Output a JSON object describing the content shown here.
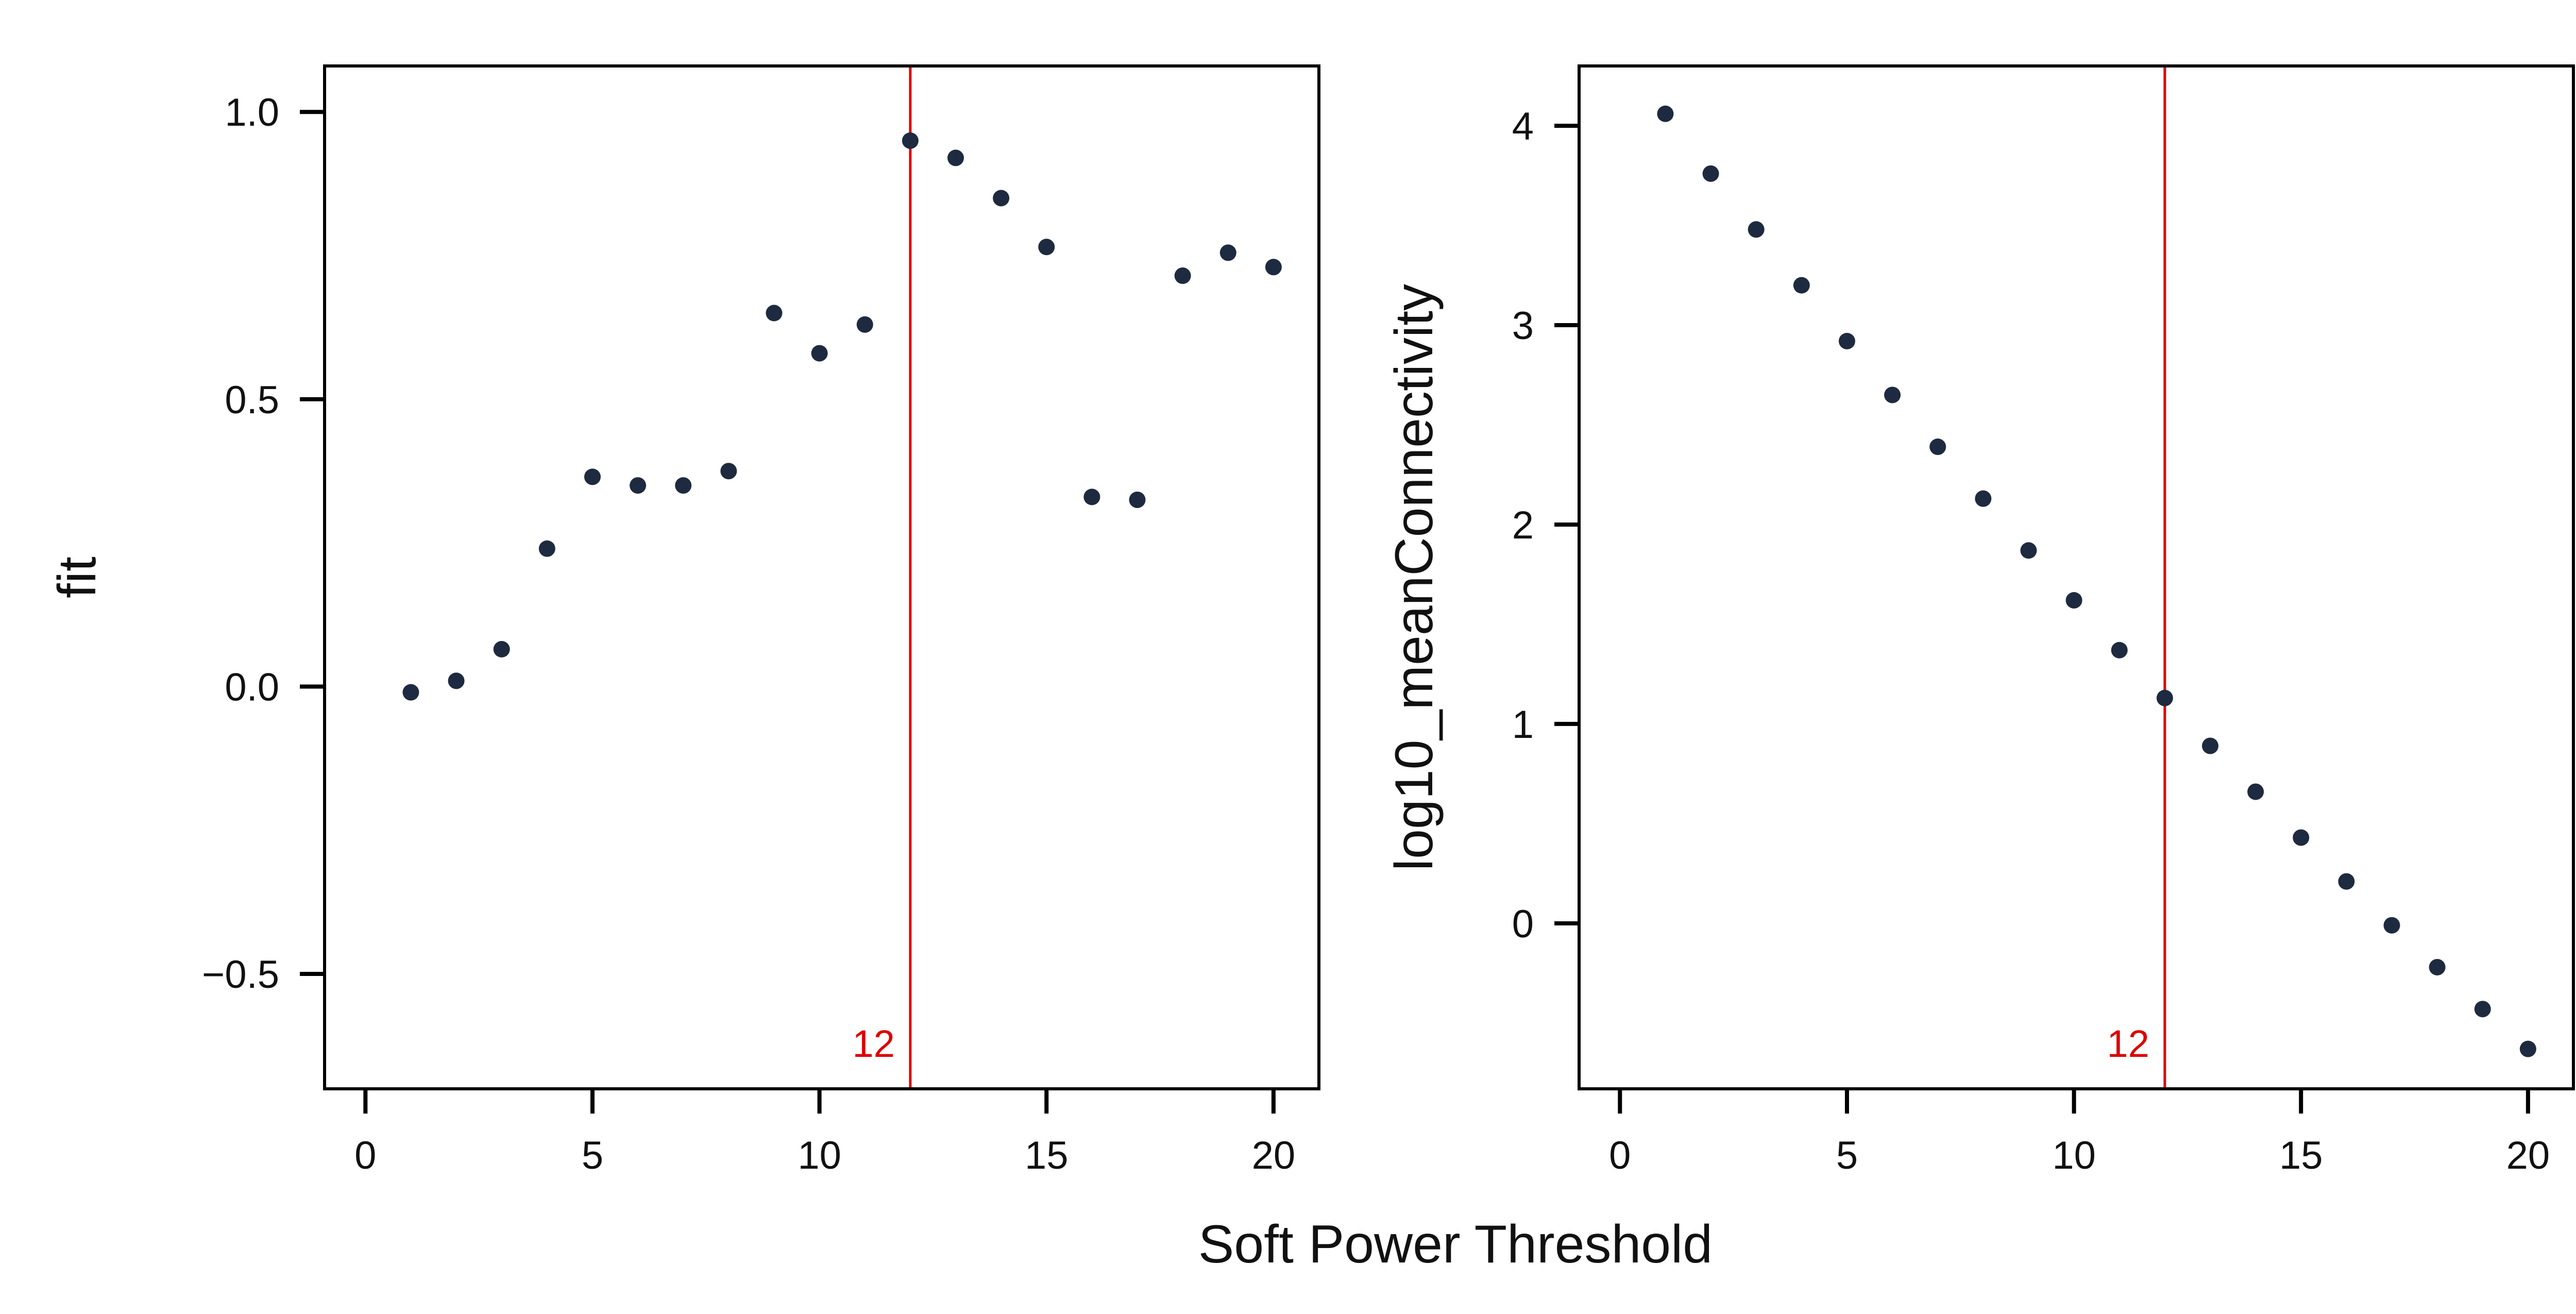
{
  "figure": {
    "xlabel": "Soft Power Threshold"
  },
  "chart_data": [
    {
      "type": "scatter",
      "title": "",
      "ylabel": "fit",
      "xlim": [
        -0.9,
        21.0
      ],
      "ylim": [
        -0.7,
        1.08
      ],
      "xticks": [
        0,
        5,
        10,
        15,
        20
      ],
      "xtick_labels": [
        "0",
        "5",
        "10",
        "15",
        "20"
      ],
      "yticks": [
        -0.5,
        0.0,
        0.5,
        1.0
      ],
      "ytick_labels": [
        "−0.5",
        "0.0",
        "0.5",
        "1.0"
      ],
      "vline": {
        "x": 12,
        "label": "12",
        "color": "#dd0000"
      },
      "point_color": "#1e2a3f",
      "grid": false,
      "legend": "none",
      "x": [
        1,
        2,
        3,
        4,
        5,
        6,
        7,
        8,
        9,
        10,
        11,
        12,
        13,
        14,
        15,
        16,
        17,
        18,
        19,
        20
      ],
      "y": [
        -0.01,
        0.01,
        0.065,
        0.24,
        0.365,
        0.35,
        0.35,
        0.375,
        0.65,
        0.58,
        0.63,
        0.95,
        0.92,
        0.85,
        0.765,
        0.33,
        0.325,
        0.715,
        0.755,
        0.73
      ]
    },
    {
      "type": "scatter",
      "title": "",
      "ylabel": "log10_meanConnectivity",
      "xlim": [
        -0.9,
        21.0
      ],
      "ylim": [
        -0.83,
        4.3
      ],
      "xticks": [
        0,
        5,
        10,
        15,
        20
      ],
      "xtick_labels": [
        "0",
        "5",
        "10",
        "15",
        "20"
      ],
      "yticks": [
        0,
        1,
        2,
        3,
        4
      ],
      "ytick_labels": [
        "0",
        "1",
        "2",
        "3",
        "4"
      ],
      "vline": {
        "x": 12,
        "label": "12",
        "color": "#dd0000"
      },
      "point_color": "#1e2a3f",
      "grid": false,
      "legend": "none",
      "x": [
        1,
        2,
        3,
        4,
        5,
        6,
        7,
        8,
        9,
        10,
        11,
        12,
        13,
        14,
        15,
        16,
        17,
        18,
        19,
        20
      ],
      "y": [
        4.06,
        3.76,
        3.48,
        3.2,
        2.92,
        2.65,
        2.39,
        2.13,
        1.87,
        1.62,
        1.37,
        1.13,
        0.89,
        0.66,
        0.43,
        0.21,
        -0.01,
        -0.22,
        -0.43,
        -0.63
      ]
    }
  ]
}
